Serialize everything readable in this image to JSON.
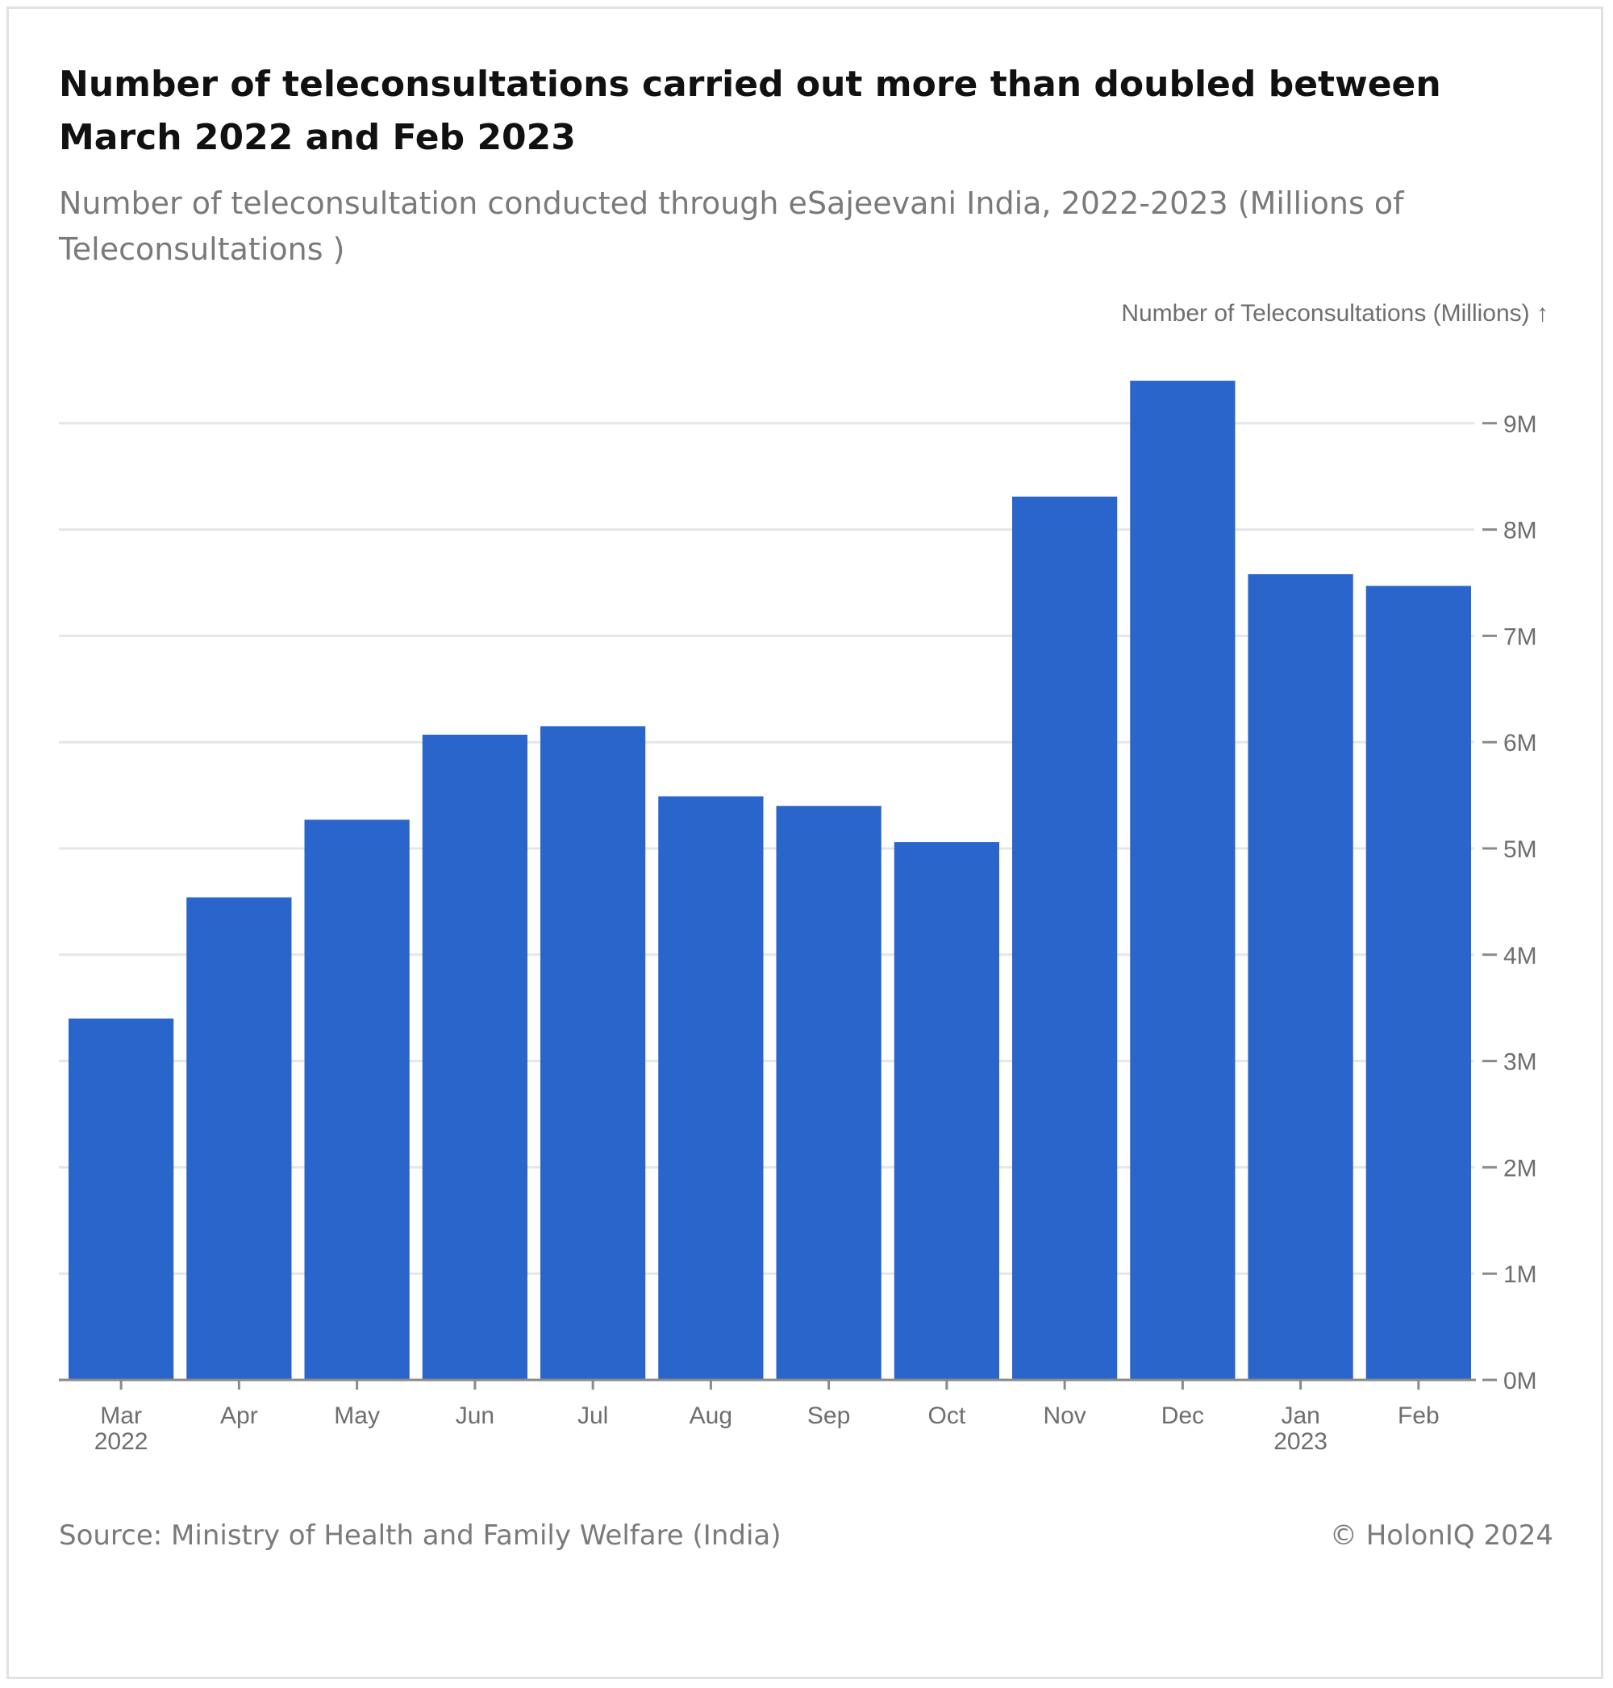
{
  "title": "Number of teleconsultations carried out more than doubled between March 2022 and Feb 2023",
  "subtitle": "Number of teleconsultation conducted through eSajeevani India, 2022-2023 (Millions of Teleconsultations )",
  "source": "Source: Ministry of Health and Family Welfare (India)",
  "credit": "© HolonIQ 2024",
  "colors": {
    "bar": "#2a65cc",
    "grid": "#e6e6e6",
    "axis": "#8a8a8a"
  },
  "chart_data": {
    "type": "bar",
    "ylabel": "Number of Teleconsultations (Millions) ↑",
    "ylim": [
      0,
      9.5
    ],
    "y_axis_position": "right",
    "grid": true,
    "categories": [
      "Mar",
      "Apr",
      "May",
      "Jun",
      "Jul",
      "Aug",
      "Sep",
      "Oct",
      "Nov",
      "Dec",
      "Jan",
      "Feb"
    ],
    "category_sublabels": [
      "2022",
      "",
      "",
      "",
      "",
      "",
      "",
      "",
      "",
      "",
      "2023",
      ""
    ],
    "yticks": [
      0,
      1,
      2,
      3,
      4,
      5,
      6,
      7,
      8,
      9
    ],
    "ytick_labels": [
      "0M",
      "1M",
      "2M",
      "3M",
      "4M",
      "5M",
      "6M",
      "7M",
      "8M",
      "9M"
    ],
    "series": [
      {
        "values": [
          3.4,
          4.54,
          5.27,
          6.07,
          6.15,
          5.49,
          5.4,
          5.06,
          8.31,
          9.4,
          7.58,
          7.47
        ]
      }
    ]
  }
}
